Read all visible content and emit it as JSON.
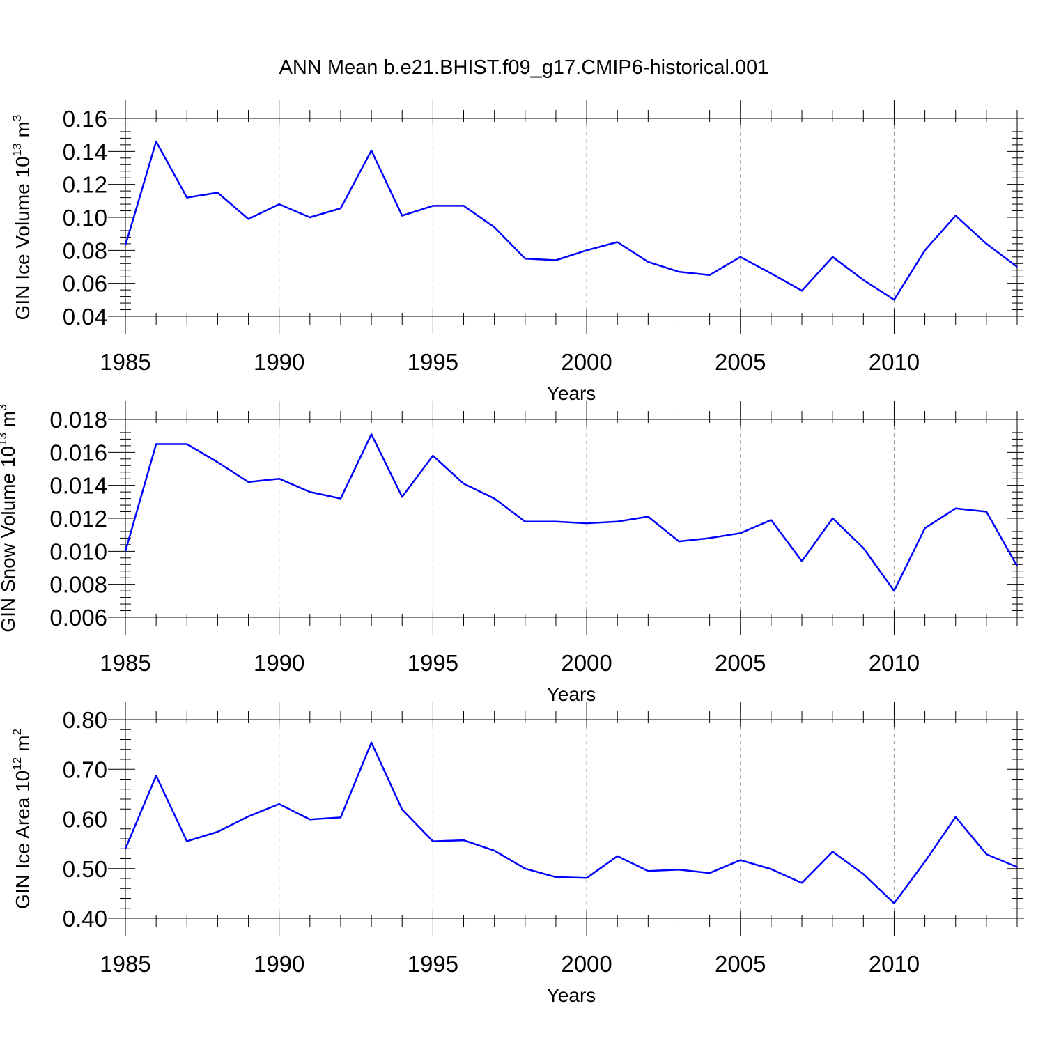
{
  "figure": {
    "title": "ANN Mean b.e21.BHIST.f09_g17.CMIP6-historical.001"
  },
  "colors": {
    "line": "#0000ff",
    "axis": "#000000",
    "grid": "#999999"
  },
  "chart_data": [
    {
      "type": "line",
      "title": "ANN Mean b.e21.BHIST.f09_g17.CMIP6-historical.001",
      "xlabel": "Years",
      "ylabel": "GIN Ice Volume 10",
      "ylabel_exp": "13",
      "ylabel_unit": "m",
      "ylabel_unit_exp": "3",
      "xlim": [
        1985,
        2014
      ],
      "ylim": [
        0.04,
        0.16
      ],
      "xticks": [
        1985,
        1990,
        1995,
        2000,
        2005,
        2010
      ],
      "xtick_labels": [
        "1985",
        "1990",
        "1995",
        "2000",
        "2005",
        "2010"
      ],
      "yticks": [
        0.04,
        0.06,
        0.08,
        0.1,
        0.12,
        0.14,
        0.16
      ],
      "ytick_labels": [
        "0.04",
        "0.06",
        "0.08",
        "0.10",
        "0.12",
        "0.14",
        "0.16"
      ],
      "grid": "vertical dashed at major x ticks",
      "series": [
        {
          "name": "GIN Ice Volume",
          "x": [
            1985,
            1986,
            1987,
            1988,
            1989,
            1990,
            1991,
            1992,
            1993,
            1994,
            1995,
            1996,
            1997,
            1998,
            1999,
            2000,
            2001,
            2002,
            2003,
            2004,
            2005,
            2006,
            2007,
            2008,
            2009,
            2010,
            2011,
            2012,
            2013,
            2014
          ],
          "values": [
            0.083,
            0.146,
            0.112,
            0.115,
            0.099,
            0.108,
            0.1,
            0.1055,
            0.1405,
            0.101,
            0.107,
            0.107,
            0.094,
            0.075,
            0.074,
            0.08,
            0.085,
            0.073,
            0.067,
            0.065,
            0.076,
            0.066,
            0.0555,
            0.076,
            0.062,
            0.05,
            0.08,
            0.101,
            0.084,
            0.07
          ]
        }
      ]
    },
    {
      "type": "line",
      "xlabel": "Years",
      "ylabel": "GIN Snow Volume 10",
      "ylabel_exp": "13",
      "ylabel_unit": "m",
      "ylabel_unit_exp": "3",
      "xlim": [
        1985,
        2014
      ],
      "ylim": [
        0.006,
        0.018
      ],
      "xticks": [
        1985,
        1990,
        1995,
        2000,
        2005,
        2010
      ],
      "xtick_labels": [
        "1985",
        "1990",
        "1995",
        "2000",
        "2005",
        "2010"
      ],
      "yticks": [
        0.006,
        0.008,
        0.01,
        0.012,
        0.014,
        0.016,
        0.018
      ],
      "ytick_labels": [
        "0.006",
        "0.008",
        "0.010",
        "0.012",
        "0.014",
        "0.016",
        "0.018"
      ],
      "grid": "vertical dashed at major x ticks",
      "series": [
        {
          "name": "GIN Snow Volume",
          "x": [
            1985,
            1986,
            1987,
            1988,
            1989,
            1990,
            1991,
            1992,
            1993,
            1994,
            1995,
            1996,
            1997,
            1998,
            1999,
            2000,
            2001,
            2002,
            2003,
            2004,
            2005,
            2006,
            2007,
            2008,
            2009,
            2010,
            2011,
            2012,
            2013,
            2014
          ],
          "values": [
            0.01,
            0.0165,
            0.0165,
            0.0154,
            0.0142,
            0.0144,
            0.0136,
            0.0132,
            0.0171,
            0.0133,
            0.0158,
            0.0141,
            0.0132,
            0.0118,
            0.0118,
            0.0117,
            0.0118,
            0.0121,
            0.0106,
            0.0108,
            0.0111,
            0.0119,
            0.0094,
            0.012,
            0.0102,
            0.0076,
            0.0114,
            0.0126,
            0.0124,
            0.0091
          ]
        }
      ]
    },
    {
      "type": "line",
      "xlabel": "Years",
      "ylabel": "GIN Ice Area 10",
      "ylabel_exp": "12",
      "ylabel_unit": "m",
      "ylabel_unit_exp": "2",
      "xlim": [
        1985,
        2014
      ],
      "ylim": [
        0.4,
        0.8
      ],
      "xticks": [
        1985,
        1990,
        1995,
        2000,
        2005,
        2010
      ],
      "xtick_labels": [
        "1985",
        "1990",
        "1995",
        "2000",
        "2005",
        "2010"
      ],
      "yticks": [
        0.4,
        0.5,
        0.6,
        0.7,
        0.8
      ],
      "ytick_labels": [
        "0.40",
        "0.50",
        "0.60",
        "0.70",
        "0.80"
      ],
      "grid": "vertical dashed at major x ticks",
      "series": [
        {
          "name": "GIN Ice Area",
          "x": [
            1985,
            1986,
            1987,
            1988,
            1989,
            1990,
            1991,
            1992,
            1993,
            1994,
            1995,
            1996,
            1997,
            1998,
            1999,
            2000,
            2001,
            2002,
            2003,
            2004,
            2005,
            2006,
            2007,
            2008,
            2009,
            2010,
            2011,
            2012,
            2013,
            2014
          ],
          "values": [
            0.54,
            0.687,
            0.555,
            0.574,
            0.605,
            0.63,
            0.599,
            0.603,
            0.754,
            0.619,
            0.555,
            0.557,
            0.536,
            0.5,
            0.483,
            0.481,
            0.525,
            0.495,
            0.498,
            0.491,
            0.517,
            0.499,
            0.471,
            0.534,
            0.489,
            0.43,
            0.514,
            0.604,
            0.529,
            0.503
          ]
        }
      ]
    }
  ]
}
